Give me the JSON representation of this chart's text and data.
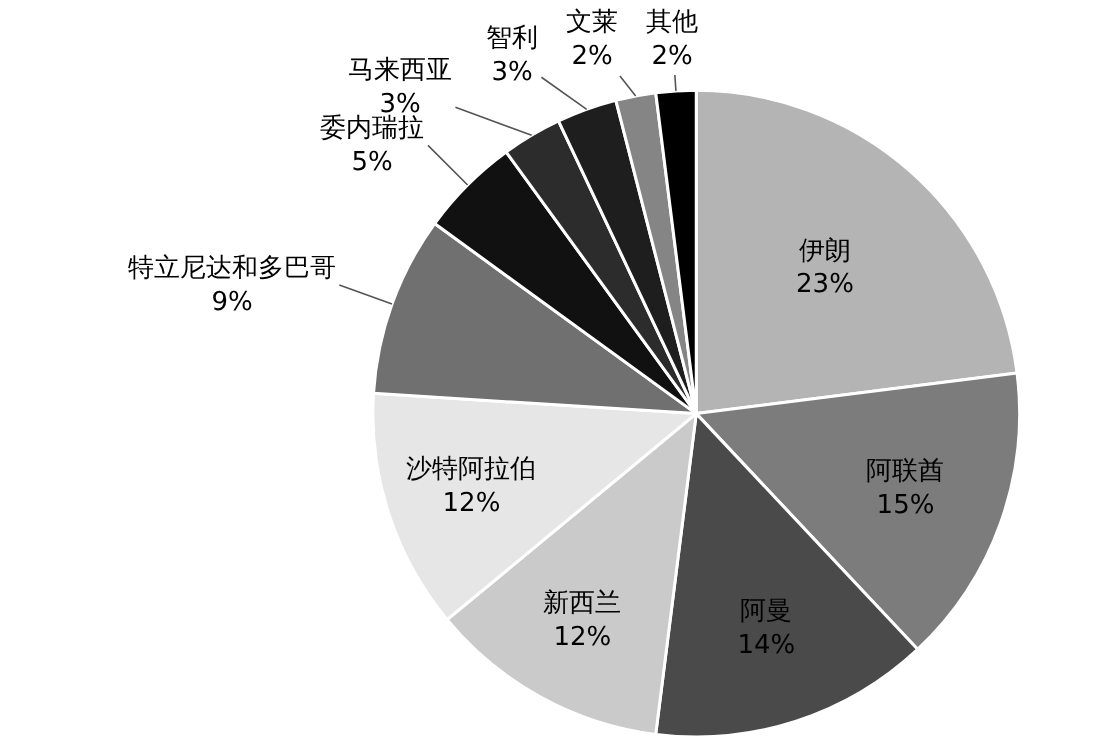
{
  "chart_data": {
    "type": "pie",
    "categories": [
      "伊朗",
      "阿联酋",
      "阿曼",
      "新西兰",
      "沙特阿拉伯",
      "特立尼达和多巴哥",
      "委内瑞拉",
      "马来西亚",
      "智利",
      "文莱",
      "其他"
    ],
    "values": [
      23,
      15,
      14,
      12,
      12,
      9,
      5,
      3,
      3,
      2,
      2
    ],
    "value_labels": [
      "23%",
      "15%",
      "14%",
      "12%",
      "12%",
      "9%",
      "5%",
      "3%",
      "3%",
      "2%",
      "2%"
    ],
    "colors": [
      "#b4b4b4",
      "#7c7c7c",
      "#4a4a4a",
      "#cacaca",
      "#e6e6e6",
      "#707070",
      "#111111",
      "#2c2c2c",
      "#1e1e1e",
      "#858585",
      "#000000"
    ],
    "legend": false
  }
}
